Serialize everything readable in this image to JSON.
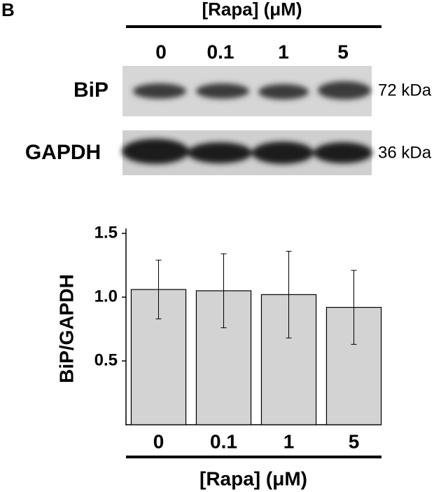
{
  "panel": "B",
  "blot": {
    "title": "[Rapa] (μM)",
    "lanes": [
      "0",
      "0.1",
      "1",
      "5"
    ],
    "rows": [
      {
        "label": "BiP",
        "size": "72 kDa"
      },
      {
        "label": "GAPDH",
        "size": "36 kDa"
      }
    ]
  },
  "chart_data": {
    "type": "bar",
    "x_label": "[Rapa] (μM)",
    "y_label": "BiP/GAPDH",
    "categories": [
      "0",
      "0.1",
      "1",
      "5"
    ],
    "values": [
      1.06,
      1.05,
      1.02,
      0.92
    ],
    "errors": [
      0.23,
      0.29,
      0.34,
      0.29
    ],
    "color": "#d3d3d3",
    "ylim": [
      0,
      1.5
    ],
    "yticks": [
      0.5,
      {
        "value": 1,
        "label": "1.0"
      },
      1.5
    ]
  }
}
